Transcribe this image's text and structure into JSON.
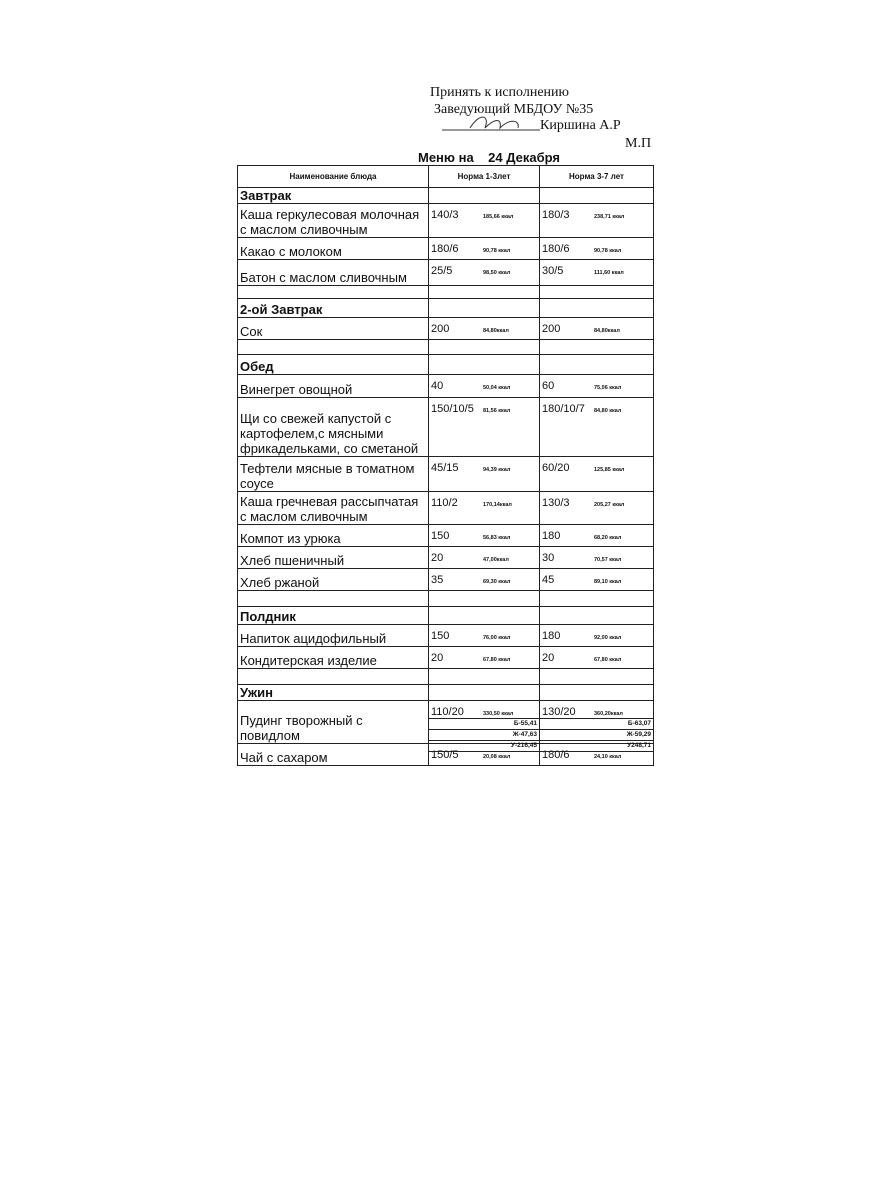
{
  "header": {
    "approval": "Принять к исполнению",
    "position": "Заведующий МБДОУ №35",
    "signatory": "Киршина А.Р",
    "stamp": "М.П"
  },
  "title": {
    "label": "Меню на",
    "date": "24 Декабря"
  },
  "table": {
    "columns": [
      "Наименование блюда",
      "Норма 1-3лет",
      "Норма 3-7 лет"
    ],
    "sections": [
      {
        "title": "Завтрак",
        "items": [
          {
            "name": "Каша геркулесовая молочная с маслом сливочным",
            "norm1": {
              "portion": "140/3",
              "kcal": "185,66 ккал"
            },
            "norm2": {
              "portion": "180/3",
              "kcal": "238,71 ккал"
            }
          },
          {
            "name": "Какао с молоком",
            "norm1": {
              "portion": "180/6",
              "kcal": "90,78 ккал"
            },
            "norm2": {
              "portion": "180/6",
              "kcal": "90,78 ккал"
            }
          },
          {
            "name": "Батон с маслом сливочным",
            "norm1": {
              "portion": "25/5",
              "kcal": "98,50 ккал"
            },
            "norm2": {
              "portion": "30/5",
              "kcal": "111,60 ккал"
            }
          }
        ]
      },
      {
        "title": "2-ой Завтрак",
        "items": [
          {
            "name": "Сок",
            "norm1": {
              "portion": "200",
              "kcal": "84,80ккал"
            },
            "norm2": {
              "portion": "200",
              "kcal": "84,80ккал"
            }
          }
        ]
      },
      {
        "title": "Обед",
        "items": [
          {
            "name": "Винегрет овощной",
            "norm1": {
              "portion": "40",
              "kcal": "50,04 ккал"
            },
            "norm2": {
              "portion": "60",
              "kcal": "75,06 ккал"
            }
          },
          {
            "name": "Щи со свежей капустой с картофелем,с мясными фрикадельками, со сметаной",
            "norm1": {
              "portion": "150/10/5",
              "kcal": "81,56 ккал"
            },
            "norm2": {
              "portion": "180/10/7",
              "kcal": "84,80 ккал"
            }
          },
          {
            "name": "Тефтели мясные в томатном соусе",
            "norm1": {
              "portion": "45/15",
              "kcal": "94,39 ккал"
            },
            "norm2": {
              "portion": "60/20",
              "kcal": "125,85 ккал"
            }
          },
          {
            "name": "Каша гречневая рассыпчатая с маслом сливочным",
            "norm1": {
              "portion": "110/2",
              "kcal": "170,14ккал"
            },
            "norm2": {
              "portion": "130/3",
              "kcal": "205,27 ккал"
            }
          },
          {
            "name": "Компот из урюка",
            "norm1": {
              "portion": "150",
              "kcal": "56,83 ккал"
            },
            "norm2": {
              "portion": "180",
              "kcal": "68,20 ккал"
            }
          },
          {
            "name": "Хлеб пшеничный",
            "norm1": {
              "portion": "20",
              "kcal": "47,00ккал"
            },
            "norm2": {
              "portion": "30",
              "kcal": "70,57 ккал"
            }
          },
          {
            "name": "Хлеб ржаной",
            "norm1": {
              "portion": "35",
              "kcal": "69,30 ккал"
            },
            "norm2": {
              "portion": "45",
              "kcal": "89,10 ккал"
            }
          }
        ]
      },
      {
        "title": "Полдник",
        "items": [
          {
            "name": "Напиток ацидофильный",
            "norm1": {
              "portion": "150",
              "kcal": "76,00 ккал"
            },
            "norm2": {
              "portion": "180",
              "kcal": "92,00 ккал"
            }
          },
          {
            "name": "Кондитерская изделие",
            "norm1": {
              "portion": "20",
              "kcal": "67,80 ккал"
            },
            "norm2": {
              "portion": "20",
              "kcal": "67,80 ккал"
            }
          }
        ]
      },
      {
        "title": "Ужин",
        "items": [
          {
            "name": "Пудинг творожный с повидлом",
            "norm1": {
              "portion": "110/20",
              "kcal": "330,50 ккал"
            },
            "norm2": {
              "portion": "130/20",
              "kcal": "360,20ккал"
            }
          },
          {
            "name": "Чай с сахаром",
            "norm1": {
              "portion": "150/5",
              "kcal": "20,08 ккал"
            },
            "norm2": {
              "portion": "180/6",
              "kcal": "24,10 ккал"
            }
          }
        ]
      }
    ],
    "totals": [
      [
        "Б-55,41",
        "Б-63,07"
      ],
      [
        "Ж-47,63",
        "Ж-59,29"
      ],
      [
        "У-216,45",
        "У248,71"
      ]
    ]
  }
}
